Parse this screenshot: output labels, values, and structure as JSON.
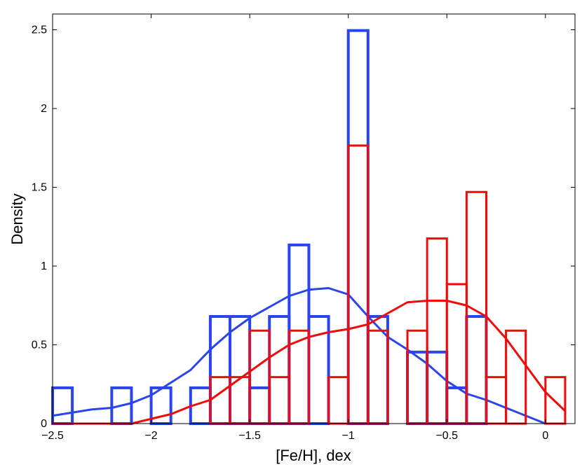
{
  "chart_data": {
    "type": "histogram",
    "xlabel": "[Fe/H], dex",
    "ylabel": "Density",
    "xlim": [
      -2.5,
      0.15
    ],
    "ylim": [
      0,
      2.6
    ],
    "xticks": [
      -2.5,
      -2,
      -1.5,
      -1,
      -0.5,
      0
    ],
    "xtick_labels": [
      "−2.5",
      "−2",
      "−1.5",
      "−1",
      "−0.5",
      "0"
    ],
    "yticks": [
      0,
      0.5,
      1,
      1.5,
      2,
      2.5
    ],
    "ytick_labels": [
      "0",
      "0.5",
      "1",
      "1.5",
      "2",
      "2.5"
    ],
    "grid": false,
    "bin_edges": [
      -2.5,
      -2.4,
      -2.3,
      -2.2,
      -2.1,
      -2.0,
      -1.9,
      -1.8,
      -1.7,
      -1.6,
      -1.5,
      -1.4,
      -1.3,
      -1.2,
      -1.1,
      -1.0,
      -0.9,
      -0.8,
      -0.7,
      -0.6,
      -0.5,
      -0.4,
      -0.3,
      -0.2,
      -0.1,
      0.0,
      0.1
    ],
    "series": [
      {
        "color": "#2a44f0",
        "histogram_density": [
          0.227,
          0,
          0,
          0.227,
          0,
          0.227,
          0,
          0.227,
          0.68,
          0.68,
          0.227,
          0.68,
          1.134,
          0.68,
          0,
          2.495,
          0.68,
          0,
          0.454,
          0.454,
          0.227,
          0.68,
          0,
          0,
          0,
          0
        ],
        "kde_x": [
          -2.5,
          -2.4,
          -2.3,
          -2.2,
          -2.1,
          -2.0,
          -1.9,
          -1.8,
          -1.7,
          -1.6,
          -1.5,
          -1.4,
          -1.3,
          -1.2,
          -1.1,
          -1.0,
          -0.9,
          -0.8,
          -0.7,
          -0.6,
          -0.5,
          -0.4,
          -0.3,
          -0.2,
          -0.1,
          0.0,
          0.1
        ],
        "kde_y": [
          0.05,
          0.07,
          0.09,
          0.1,
          0.13,
          0.18,
          0.26,
          0.34,
          0.47,
          0.58,
          0.67,
          0.74,
          0.81,
          0.85,
          0.86,
          0.82,
          0.68,
          0.55,
          0.47,
          0.38,
          0.27,
          0.19,
          0.15,
          0.1,
          0.05,
          0.0,
          0.0
        ]
      },
      {
        "color": "#f00a0a",
        "histogram_density": [
          0,
          0,
          0,
          0,
          0,
          0,
          0,
          0,
          0.295,
          0.295,
          0.59,
          0.295,
          0.59,
          0,
          0.295,
          1.765,
          0.59,
          0,
          0.59,
          1.175,
          0.885,
          1.47,
          0.295,
          0.59,
          0,
          0.295
        ],
        "kde_x": [
          -2.5,
          -2.4,
          -2.3,
          -2.2,
          -2.1,
          -2.0,
          -1.9,
          -1.8,
          -1.7,
          -1.6,
          -1.5,
          -1.4,
          -1.3,
          -1.2,
          -1.1,
          -1.0,
          -0.9,
          -0.8,
          -0.7,
          -0.6,
          -0.5,
          -0.4,
          -0.3,
          -0.2,
          -0.1,
          0.0,
          0.1
        ],
        "kde_y": [
          0,
          0,
          0,
          0,
          0,
          0.03,
          0.06,
          0.11,
          0.15,
          0.24,
          0.33,
          0.42,
          0.5,
          0.55,
          0.58,
          0.6,
          0.63,
          0.7,
          0.77,
          0.78,
          0.78,
          0.75,
          0.68,
          0.54,
          0.37,
          0.2,
          0.08
        ]
      }
    ]
  }
}
